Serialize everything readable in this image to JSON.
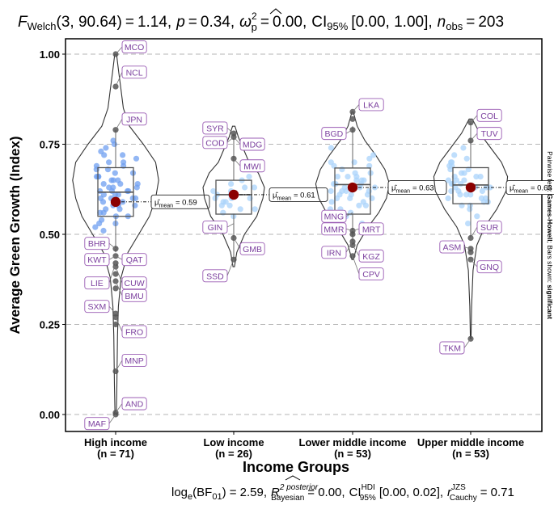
{
  "chart_data": {
    "type": "violin_box_scatter",
    "title": {
      "stat_name": "F",
      "stat_sub": "Welch",
      "df": "(3, 90.64)",
      "stat_value": "1.14",
      "p_label": "p",
      "p_value": "0.34",
      "effect_symbol": "ω",
      "effect_sup": "2",
      "effect_sub": "p",
      "effect_value": "0.00",
      "ci_label": "CI",
      "ci_sub": "95%",
      "ci_value": "[0.00, 1.00]",
      "n_label": "n",
      "n_sub": "obs",
      "n_value": "203"
    },
    "subtitle": {
      "bf_text": "log",
      "bf_sub": "e",
      "bf_args": "(BF",
      "bf_args_sub": "01",
      "bf_value": ") = 2.59,",
      "r2_symbol": "R",
      "r2_sup": "2 posterior",
      "r2_sub": "Bayesian",
      "r2_value": "= 0.00,",
      "ci_label": "CI",
      "ci_sup": "HDI",
      "ci_sub": "95%",
      "ci_value": "[0.00, 0.02],",
      "cauchy_symbol": "r",
      "cauchy_sup": "JZS",
      "cauchy_sub": "Cauchy",
      "cauchy_value": "= 0.71"
    },
    "xlabel": "Income Groups",
    "ylabel": "Average Green Growth (Index)",
    "right_caption_plain": "Pairwise test: ",
    "right_caption_bold1": "Games-Howell",
    "right_caption_mid": "; Bars shown: ",
    "right_caption_bold2": "significant",
    "ylim": [
      0,
      1
    ],
    "yticks": [
      "0.00",
      "0.25",
      "0.50",
      "0.75",
      "1.00"
    ],
    "mean_label_prefix": "μ̂",
    "mean_label_sub": "mean",
    "groups": [
      {
        "name": "High income",
        "n_label": "(n = 71)",
        "mean": 0.59,
        "mean_text": "= 0.59",
        "q1": 0.55,
        "median": 0.617,
        "q3": 0.685,
        "whisker_low": 0.45,
        "whisker_high": 0.79,
        "violin": [
          [
            0.0,
            0.004
          ],
          [
            0.08,
            0.008
          ],
          [
            0.15,
            0.01
          ],
          [
            0.22,
            0.012
          ],
          [
            0.3,
            0.018
          ],
          [
            0.38,
            0.035
          ],
          [
            0.45,
            0.08
          ],
          [
            0.5,
            0.15
          ],
          [
            0.55,
            0.22
          ],
          [
            0.6,
            0.26
          ],
          [
            0.65,
            0.28
          ],
          [
            0.7,
            0.26
          ],
          [
            0.75,
            0.18
          ],
          [
            0.8,
            0.09
          ],
          [
            0.85,
            0.05
          ],
          [
            0.9,
            0.035
          ],
          [
            0.95,
            0.02
          ],
          [
            1.0,
            0.006
          ]
        ],
        "points": [
          0.61,
          0.58,
          0.66,
          0.72,
          0.63,
          0.55,
          0.69,
          0.6,
          0.57,
          0.65,
          0.74,
          0.62,
          0.59,
          0.68,
          0.53,
          0.64,
          0.7,
          0.56,
          0.61,
          0.67,
          0.73,
          0.52,
          0.6,
          0.63,
          0.66,
          0.58,
          0.71,
          0.54,
          0.62,
          0.65,
          0.69,
          0.57,
          0.6,
          0.64,
          0.76,
          0.51,
          0.59,
          0.68,
          0.62,
          0.55,
          0.63,
          0.7,
          0.66,
          0.58,
          0.61,
          0.67,
          0.75,
          0.56,
          0.64,
          0.6,
          0.62,
          0.72,
          0.53,
          0.59,
          0.65
        ],
        "outliers": [
          0.0,
          0.005,
          0.12,
          0.25,
          0.27,
          0.28,
          0.35,
          0.37,
          0.39,
          0.41,
          0.42,
          0.44,
          0.46,
          0.79,
          0.91,
          1.0
        ],
        "labels": [
          {
            "text": "MCO",
            "y": 1.0,
            "side": "right",
            "dy": 0.02
          },
          {
            "text": "NCL",
            "y": 0.91,
            "side": "right",
            "dy": 0.04
          },
          {
            "text": "JPN",
            "y": 0.79,
            "side": "right",
            "dy": 0.03
          },
          {
            "text": "BHR",
            "y": 0.46,
            "side": "left",
            "dy": 0.015
          },
          {
            "text": "KWT",
            "y": 0.44,
            "side": "left",
            "dy": -0.01
          },
          {
            "text": "QAT",
            "y": 0.44,
            "side": "right",
            "dy": -0.01
          },
          {
            "text": "LIE",
            "y": 0.42,
            "side": "left",
            "dy": -0.055
          },
          {
            "text": "CUW",
            "y": 0.41,
            "side": "right",
            "dy": -0.045
          },
          {
            "text": "BMU",
            "y": 0.37,
            "side": "right",
            "dy": -0.04
          },
          {
            "text": "SXM",
            "y": 0.28,
            "side": "left",
            "dy": 0.02
          },
          {
            "text": "FRO",
            "y": 0.27,
            "side": "right",
            "dy": -0.04
          },
          {
            "text": "MNP",
            "y": 0.12,
            "side": "right",
            "dy": 0.03
          },
          {
            "text": "AND",
            "y": 0.005,
            "side": "right",
            "dy": 0.025
          },
          {
            "text": "MAF",
            "y": 0.0,
            "side": "left",
            "dy": -0.025
          }
        ]
      },
      {
        "name": "Low income",
        "n_label": "(n = 26)",
        "mean": 0.61,
        "mean_text": "= 0.61",
        "q1": 0.556,
        "median": 0.61,
        "q3": 0.65,
        "whisker_low": 0.43,
        "whisker_high": 0.78,
        "violin": [
          [
            0.41,
            0.005
          ],
          [
            0.45,
            0.02
          ],
          [
            0.5,
            0.07
          ],
          [
            0.55,
            0.15
          ],
          [
            0.6,
            0.19
          ],
          [
            0.63,
            0.2
          ],
          [
            0.67,
            0.16
          ],
          [
            0.7,
            0.1
          ],
          [
            0.74,
            0.06
          ],
          [
            0.77,
            0.03
          ],
          [
            0.8,
            0.008
          ]
        ],
        "points": [
          0.6,
          0.62,
          0.58,
          0.65,
          0.57,
          0.63,
          0.59,
          0.61,
          0.55,
          0.64,
          0.66,
          0.6,
          0.62,
          0.56,
          0.58,
          0.63,
          0.61,
          0.59,
          0.69,
          0.6,
          0.57
        ],
        "outliers": [
          0.43,
          0.49,
          0.71,
          0.77,
          0.78
        ],
        "labels": [
          {
            "text": "SYR",
            "y": 0.78,
            "side": "left",
            "dy": 0.015
          },
          {
            "text": "COD",
            "y": 0.77,
            "side": "left",
            "dy": -0.015
          },
          {
            "text": "MDG",
            "y": 0.77,
            "side": "right",
            "dy": -0.02
          },
          {
            "text": "MWI",
            "y": 0.71,
            "side": "right",
            "dy": -0.02
          },
          {
            "text": "GIN",
            "y": 0.53,
            "side": "left",
            "dy": -0.01
          },
          {
            "text": "GMB",
            "y": 0.49,
            "side": "right",
            "dy": -0.03
          },
          {
            "text": "SSD",
            "y": 0.43,
            "side": "left",
            "dy": -0.045
          }
        ]
      },
      {
        "name": "Lower middle income",
        "n_label": "(n = 53)",
        "mean": 0.63,
        "mean_text": "= 0.63",
        "q1": 0.556,
        "median": 0.638,
        "q3": 0.684,
        "whisker_low": 0.47,
        "whisker_high": 0.8,
        "violin": [
          [
            0.43,
            0.005
          ],
          [
            0.47,
            0.03
          ],
          [
            0.52,
            0.1
          ],
          [
            0.56,
            0.17
          ],
          [
            0.6,
            0.22
          ],
          [
            0.64,
            0.24
          ],
          [
            0.68,
            0.21
          ],
          [
            0.72,
            0.15
          ],
          [
            0.76,
            0.08
          ],
          [
            0.8,
            0.03
          ],
          [
            0.84,
            0.004
          ]
        ],
        "points": [
          0.6,
          0.62,
          0.65,
          0.58,
          0.67,
          0.7,
          0.63,
          0.55,
          0.61,
          0.66,
          0.64,
          0.59,
          0.68,
          0.72,
          0.57,
          0.62,
          0.65,
          0.6,
          0.69,
          0.63,
          0.56,
          0.71,
          0.66,
          0.61,
          0.64,
          0.58,
          0.67,
          0.62,
          0.74,
          0.6,
          0.53,
          0.65,
          0.63,
          0.69,
          0.57,
          0.61,
          0.66,
          0.59,
          0.64,
          0.62,
          0.7
        ],
        "outliers": [
          0.44,
          0.47,
          0.48,
          0.5,
          0.51,
          0.79,
          0.82,
          0.84
        ],
        "labels": [
          {
            "text": "LKA",
            "y": 0.84,
            "side": "right",
            "dy": 0.02
          },
          {
            "text": "BGD",
            "y": 0.79,
            "side": "left",
            "dy": -0.01
          },
          {
            "text": "MNG",
            "y": 0.56,
            "side": "left",
            "dy": -0.01
          },
          {
            "text": "MMR",
            "y": 0.51,
            "side": "left",
            "dy": 0.005
          },
          {
            "text": "MRT",
            "y": 0.51,
            "side": "right",
            "dy": 0.005
          },
          {
            "text": "IRN",
            "y": 0.48,
            "side": "left",
            "dy": -0.03
          },
          {
            "text": "KGZ",
            "y": 0.47,
            "side": "right",
            "dy": -0.03
          },
          {
            "text": "CPV",
            "y": 0.44,
            "side": "right",
            "dy": -0.05
          }
        ]
      },
      {
        "name": "Upper middle income",
        "n_label": "(n = 53)",
        "mean": 0.63,
        "mean_text": "= 0.63",
        "q1": 0.585,
        "median": 0.637,
        "q3": 0.685,
        "whisker_low": 0.49,
        "whisker_high": 0.81,
        "violin": [
          [
            0.21,
            0.002
          ],
          [
            0.3,
            0.006
          ],
          [
            0.4,
            0.015
          ],
          [
            0.47,
            0.04
          ],
          [
            0.52,
            0.09
          ],
          [
            0.57,
            0.17
          ],
          [
            0.62,
            0.23
          ],
          [
            0.66,
            0.24
          ],
          [
            0.7,
            0.2
          ],
          [
            0.74,
            0.13
          ],
          [
            0.78,
            0.06
          ],
          [
            0.82,
            0.01
          ]
        ],
        "points": [
          0.6,
          0.63,
          0.66,
          0.61,
          0.68,
          0.64,
          0.58,
          0.7,
          0.65,
          0.62,
          0.67,
          0.59,
          0.72,
          0.63,
          0.6,
          0.66,
          0.69,
          0.61,
          0.64,
          0.57,
          0.71,
          0.65,
          0.62,
          0.68,
          0.6,
          0.74,
          0.63,
          0.66,
          0.55,
          0.61,
          0.67,
          0.64,
          0.59,
          0.7,
          0.62,
          0.65,
          0.58,
          0.69,
          0.63,
          0.53
        ],
        "outliers": [
          0.21,
          0.43,
          0.45,
          0.46,
          0.49,
          0.76,
          0.81
        ],
        "labels": [
          {
            "text": "COL",
            "y": 0.81,
            "side": "right",
            "dy": 0.02
          },
          {
            "text": "TUV",
            "y": 0.76,
            "side": "right",
            "dy": 0.02
          },
          {
            "text": "SUR",
            "y": 0.49,
            "side": "right",
            "dy": 0.03
          },
          {
            "text": "ASM",
            "y": 0.46,
            "side": "left",
            "dy": 0.005
          },
          {
            "text": "GNQ",
            "y": 0.43,
            "side": "right",
            "dy": -0.02
          },
          {
            "text": "TKM",
            "y": 0.21,
            "side": "left",
            "dy": -0.025
          }
        ]
      }
    ]
  }
}
